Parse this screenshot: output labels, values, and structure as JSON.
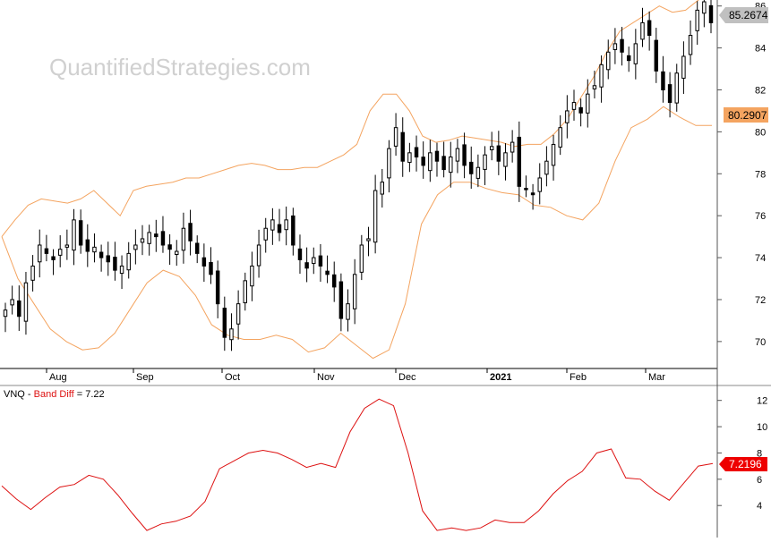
{
  "watermark": "QuantifiedStrategies.com",
  "colors": {
    "candle": "#000000",
    "band": "#f4a460",
    "band_diff": "#dd1111",
    "price_tag": "#c0c0c0",
    "band_tag": "#f4a460",
    "diff_tag": "#ee0000"
  },
  "chart_data": [
    {
      "type": "candlestick",
      "title": "",
      "symbol": "VNQ",
      "y_axis_ticks": [
        "70",
        "72",
        "74",
        "76",
        "78",
        "80",
        "82",
        "84",
        "86"
      ],
      "x_axis_ticks": [
        "Aug",
        "Sep",
        "Oct",
        "Nov",
        "Dec",
        "2021",
        "Feb",
        "Mar"
      ],
      "ylim": [
        68.8,
        86.2
      ],
      "last_price_label": "85.2674",
      "band_value_label": "80.2907",
      "close_series_approx": [
        71.5,
        72.0,
        71.2,
        72.8,
        73.6,
        74.6,
        74.2,
        73.9,
        74.4,
        74.6,
        75.8,
        74.6,
        74.3,
        74.5,
        74.0,
        73.8,
        73.4,
        73.6,
        74.2,
        74.6,
        74.9,
        75.2,
        75.0,
        74.6,
        74.4,
        74.3,
        75.4,
        74.8,
        74.2,
        73.6,
        73.2,
        71.8,
        70.2,
        70.6,
        71.8,
        72.9,
        73.6,
        74.6,
        75.4,
        75.8,
        75.2,
        75.8,
        74.6,
        73.9,
        73.5,
        74.0,
        73.6,
        73.2,
        72.6,
        71.1,
        71.8,
        73.2,
        74.6,
        74.9,
        77.2,
        77.6,
        79.2,
        80.2,
        78.6,
        79.0,
        78.8,
        78.4,
        79.0,
        78.6,
        78.2,
        78.8,
        79.2,
        78.4,
        78.0,
        78.3,
        78.9,
        79.3,
        78.6,
        79.0,
        79.5,
        77.4,
        77.3,
        77.0,
        77.8,
        78.6,
        79.4,
        80.2,
        81.0,
        81.4,
        80.9,
        81.8,
        82.2,
        83.2,
        83.8,
        84.2,
        83.8,
        83.4,
        84.2,
        85.2,
        84.6,
        82.9,
        82.0,
        81.4,
        82.8,
        83.6,
        84.6,
        85.8,
        86.2,
        85.2
      ],
      "upper_band_series_approx": [
        75.0,
        75.8,
        76.5,
        76.8,
        76.7,
        76.6,
        76.8,
        77.2,
        76.6,
        76.0,
        77.2,
        77.4,
        77.5,
        77.6,
        77.8,
        77.8,
        78.0,
        78.2,
        78.4,
        78.5,
        78.4,
        78.2,
        78.2,
        78.3,
        78.3,
        78.6,
        78.9,
        79.4,
        81.0,
        81.8,
        81.8,
        81.0,
        79.8,
        79.5,
        79.6,
        79.8,
        79.7,
        79.6,
        79.5,
        79.3,
        79.4,
        79.4,
        79.9,
        80.6,
        81.6,
        82.6,
        83.8,
        84.8,
        85.2,
        85.6,
        86.0,
        85.7,
        85.8,
        86.3,
        86.8
      ],
      "lower_band_series_approx": [
        75.0,
        73.0,
        71.8,
        70.6,
        70.0,
        69.6,
        69.7,
        70.4,
        71.6,
        72.8,
        73.4,
        73.1,
        72.2,
        70.8,
        70.3,
        70.1,
        70.1,
        70.3,
        70.1,
        69.5,
        69.7,
        70.4,
        69.8,
        69.2,
        69.6,
        71.8,
        75.6,
        77.0,
        77.6,
        77.6,
        77.3,
        77.1,
        77.0,
        76.5,
        76.4,
        76.0,
        75.8,
        76.6,
        78.6,
        80.2,
        80.6,
        81.2,
        80.7,
        80.3,
        80.3
      ]
    },
    {
      "type": "line",
      "title": "",
      "label_prefix": "VNQ - ",
      "series_name": "Band Diff",
      "label_suffix": " = 7.22",
      "y_axis_ticks": [
        "4",
        "6",
        "8",
        "10",
        "12"
      ],
      "ylim": [
        1.7,
        13.0
      ],
      "last_value_label": "7.2196",
      "values_approx": [
        5.5,
        4.5,
        3.7,
        4.6,
        5.4,
        5.6,
        6.3,
        6.0,
        4.8,
        3.4,
        2.1,
        2.6,
        2.8,
        3.2,
        4.3,
        6.8,
        7.4,
        8.0,
        8.2,
        8.0,
        7.5,
        6.9,
        7.2,
        6.9,
        9.6,
        11.4,
        12.1,
        11.6,
        8.0,
        3.6,
        2.1,
        2.3,
        2.1,
        2.3,
        2.9,
        2.7,
        2.7,
        3.6,
        4.9,
        5.9,
        6.6,
        8.0,
        8.3,
        6.1,
        6.0,
        5.1,
        4.4,
        5.7,
        7.0,
        7.2
      ]
    }
  ]
}
